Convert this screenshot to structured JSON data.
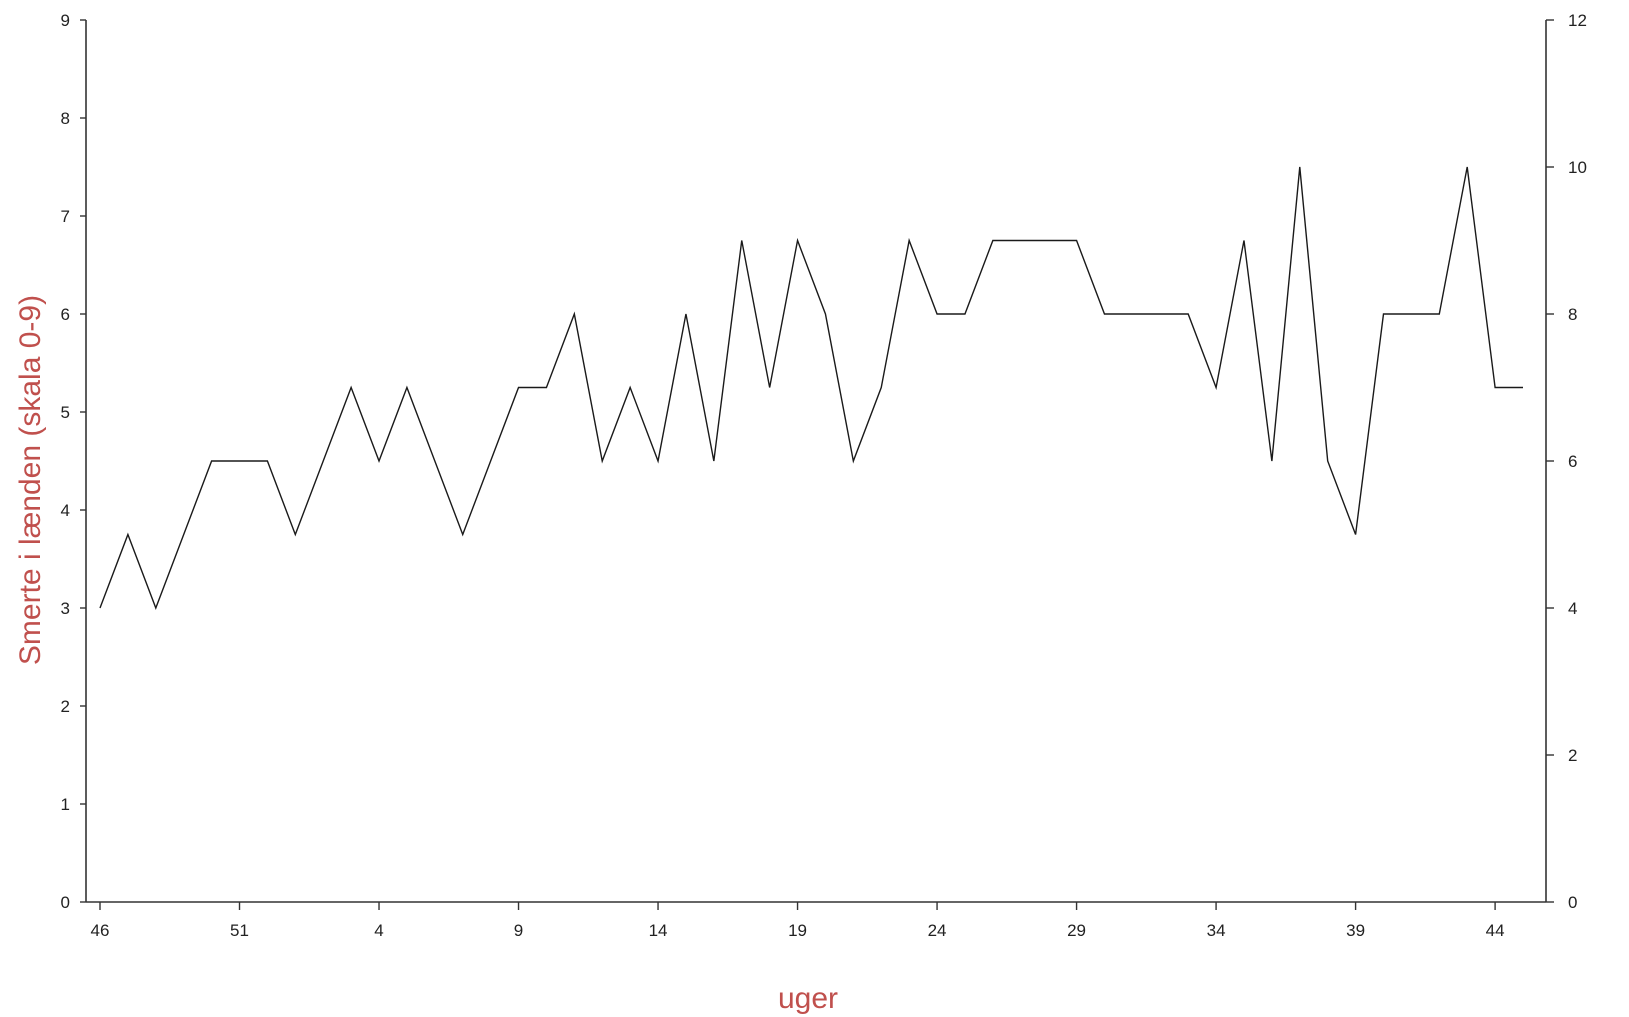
{
  "chart_data": {
    "type": "line",
    "title": "",
    "xlabel": "uger",
    "ylabel": "Smerte i lænden (skala 0-9)",
    "y_left": {
      "ticks": [
        "0",
        "1",
        "2",
        "3",
        "4",
        "5",
        "6",
        "7",
        "8",
        "9"
      ],
      "lim": [
        0,
        9
      ]
    },
    "y_right": {
      "ticks": [
        "0",
        "2",
        "4",
        "6",
        "8",
        "10",
        "12"
      ],
      "lim": [
        0,
        12
      ]
    },
    "x_tick_labels": [
      "46",
      "51",
      "4",
      "9",
      "14",
      "19",
      "24",
      "29",
      "34",
      "39",
      "44"
    ],
    "grid": false,
    "legend": "none",
    "line_color": "#1a1a1a",
    "label_color": "#c0504d",
    "series": [
      {
        "axis": "right",
        "x": [
          "46",
          "47",
          "48",
          "49",
          "50",
          "51",
          "52",
          "1",
          "2",
          "3",
          "4",
          "5",
          "6",
          "7",
          "8",
          "9",
          "10",
          "11",
          "12",
          "13",
          "14",
          "15",
          "16",
          "17",
          "18",
          "19",
          "20",
          "21",
          "22",
          "23",
          "24",
          "25",
          "26",
          "27",
          "28",
          "29",
          "30",
          "31",
          "32",
          "33",
          "34",
          "35",
          "36",
          "37",
          "38",
          "39",
          "40",
          "41",
          "42",
          "43",
          "44",
          "45"
        ],
        "values": [
          4,
          5,
          4,
          5,
          6,
          6,
          6,
          5,
          6,
          7,
          6,
          7,
          6,
          5,
          6,
          7,
          7,
          8,
          6,
          7,
          6,
          8,
          6,
          9,
          7,
          9,
          8,
          6,
          7,
          9,
          8,
          8,
          9,
          9,
          9,
          9,
          8,
          8,
          8,
          8,
          7,
          9,
          6,
          10,
          6,
          5,
          8,
          8,
          8,
          10,
          7,
          7
        ]
      }
    ]
  }
}
